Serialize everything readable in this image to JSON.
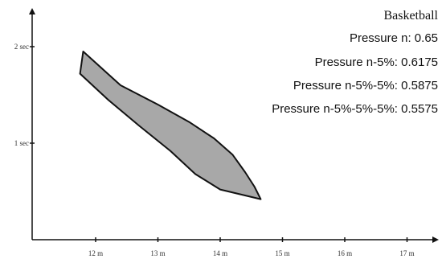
{
  "chart_data": {
    "type": "area",
    "title": "Basketball",
    "xlabel": "",
    "ylabel": "",
    "x_tick_labels": [
      "12 m",
      "13 m",
      "14 m",
      "15 m",
      "16 m",
      "17 m"
    ],
    "y_tick_labels": [
      "1 sec",
      "2 sec"
    ],
    "x_ticks": [
      12,
      13,
      14,
      15,
      16,
      17
    ],
    "y_ticks": [
      1,
      2
    ],
    "xlim": [
      11,
      17.5
    ],
    "ylim": [
      0,
      2.3
    ],
    "grid": false,
    "legend_position": "top-right",
    "annotations": [
      "Pressure n: 0.65",
      "Pressure n-5%: 0.6175",
      "Pressure n-5%-5%: 0.5875",
      "Pressure n-5%-5%-5%: 0.5575"
    ],
    "series": [
      {
        "upper_boundary": [
          [
            11.8,
            1.95
          ],
          [
            12.4,
            1.6
          ],
          [
            13.0,
            1.4
          ],
          [
            13.5,
            1.22
          ],
          [
            13.9,
            1.05
          ],
          [
            14.2,
            0.88
          ],
          [
            14.4,
            0.7
          ],
          [
            14.55,
            0.55
          ],
          [
            14.65,
            0.42
          ]
        ],
        "lower_boundary": [
          [
            11.75,
            1.72
          ],
          [
            12.2,
            1.45
          ],
          [
            12.7,
            1.18
          ],
          [
            13.2,
            0.92
          ],
          [
            13.6,
            0.68
          ],
          [
            14.0,
            0.52
          ],
          [
            14.65,
            0.42
          ]
        ]
      }
    ],
    "colors": {
      "fill": "#a8a8a8",
      "stroke": "#111111",
      "axis": "#111111"
    }
  }
}
